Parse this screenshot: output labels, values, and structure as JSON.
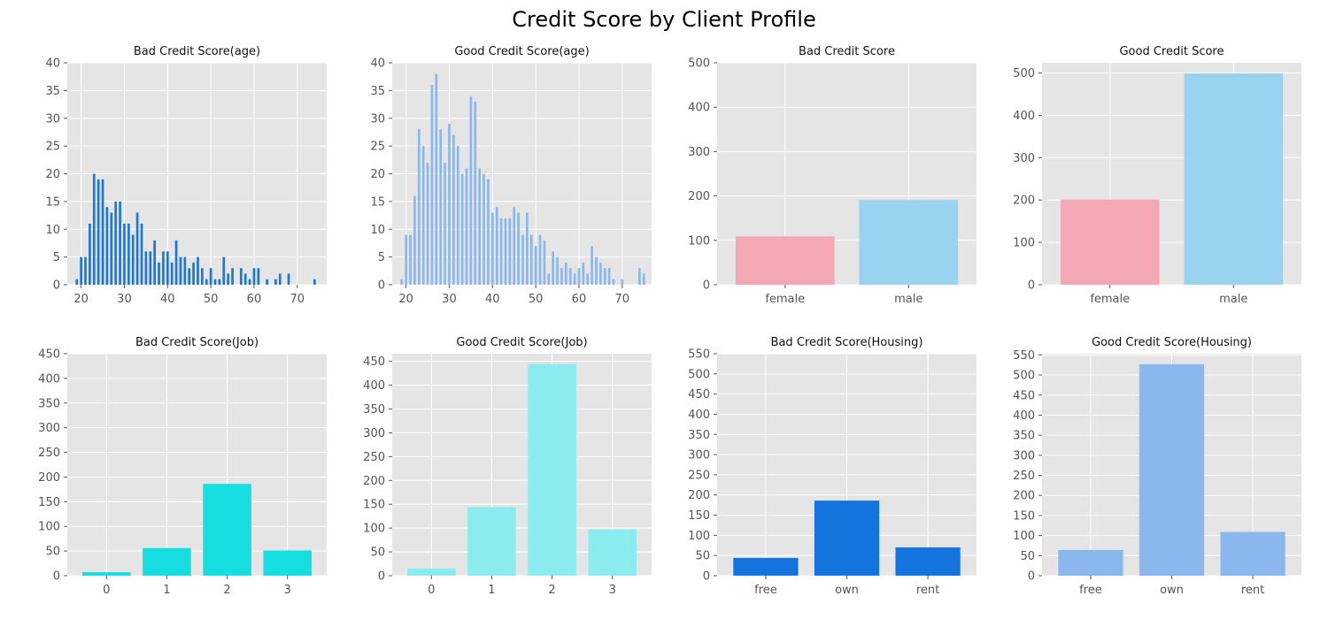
{
  "figure": {
    "title": "Credit Score by Client Profile"
  },
  "chart_data": [
    {
      "type": "bar",
      "title": "Bad Credit Score(age)",
      "xlabel": "",
      "ylabel": "",
      "color": "#1f77d4",
      "x": [
        19,
        20,
        21,
        22,
        23,
        24,
        25,
        26,
        27,
        28,
        29,
        30,
        31,
        32,
        33,
        34,
        35,
        36,
        37,
        38,
        39,
        40,
        41,
        42,
        43,
        44,
        45,
        46,
        47,
        48,
        49,
        50,
        51,
        52,
        53,
        54,
        55,
        57,
        58,
        59,
        60,
        61,
        63,
        65,
        66,
        68,
        74
      ],
      "values": [
        1,
        5,
        5,
        11,
        20,
        19,
        19,
        14,
        13,
        15,
        15,
        11,
        11,
        9,
        13,
        11,
        6,
        6,
        8,
        4,
        6,
        6,
        4,
        8,
        5,
        5,
        3,
        4,
        5,
        3,
        1,
        3,
        1,
        1,
        5,
        2,
        3,
        3,
        2,
        1,
        3,
        3,
        1,
        1,
        2,
        2,
        1
      ],
      "xlim": [
        16.8,
        76.8
      ],
      "ylim": [
        0,
        40
      ],
      "xticks": [
        20,
        30,
        40,
        50,
        60,
        70
      ],
      "yticks": [
        0,
        5,
        10,
        15,
        20,
        25,
        30,
        35,
        40
      ]
    },
    {
      "type": "bar",
      "title": "Good Credit Score(age)",
      "xlabel": "",
      "ylabel": "",
      "color": "#8ab8ee",
      "x": [
        19,
        20,
        21,
        22,
        23,
        24,
        25,
        26,
        27,
        28,
        29,
        30,
        31,
        32,
        33,
        34,
        35,
        36,
        37,
        38,
        39,
        40,
        41,
        42,
        43,
        44,
        45,
        46,
        47,
        48,
        49,
        50,
        51,
        52,
        53,
        54,
        55,
        56,
        57,
        58,
        59,
        60,
        61,
        62,
        63,
        64,
        65,
        66,
        67,
        68,
        70,
        74,
        75
      ],
      "values": [
        1,
        9,
        9,
        16,
        28,
        25,
        22,
        36,
        38,
        28,
        22,
        29,
        27,
        25,
        20,
        21,
        34,
        33,
        21,
        20,
        19,
        13,
        14,
        12,
        12,
        12,
        14,
        13,
        9,
        13,
        9,
        7,
        9,
        8,
        2,
        6,
        5,
        3,
        4,
        3,
        2,
        3,
        4,
        2,
        7,
        5,
        4,
        3,
        3,
        1,
        1,
        3,
        2
      ],
      "xlim": [
        16.8,
        76.8
      ],
      "ylim": [
        0,
        40
      ],
      "xticks": [
        20,
        30,
        40,
        50,
        60,
        70
      ],
      "yticks": [
        0,
        5,
        10,
        15,
        20,
        25,
        30,
        35,
        40
      ]
    },
    {
      "type": "bar",
      "title": "Bad Credit Score",
      "xlabel": "",
      "ylabel": "",
      "categories": [
        "female",
        "male"
      ],
      "values": [
        109,
        191
      ],
      "colors": [
        "#f4a7b4",
        "#9ad3f0"
      ],
      "ylim": [
        0,
        500
      ],
      "yticks": [
        0,
        100,
        200,
        300,
        400,
        500
      ]
    },
    {
      "type": "bar",
      "title": "Good Credit Score",
      "xlabel": "",
      "ylabel": "",
      "categories": [
        "female",
        "male"
      ],
      "values": [
        201,
        499
      ],
      "colors": [
        "#f4a7b4",
        "#9ad3f0"
      ],
      "ylim": [
        0,
        524
      ],
      "yticks": [
        0,
        100,
        200,
        300,
        400,
        500
      ]
    },
    {
      "type": "bar",
      "title": "Bad Credit Score(Job)",
      "xlabel": "",
      "ylabel": "",
      "categories": [
        "0",
        "1",
        "2",
        "3"
      ],
      "values": [
        7,
        56,
        186,
        51
      ],
      "colors": [
        "#15dde0",
        "#15dde0",
        "#15dde0",
        "#15dde0"
      ],
      "ylim": [
        0,
        450
      ],
      "yticks": [
        0,
        50,
        100,
        150,
        200,
        250,
        300,
        350,
        400,
        450
      ]
    },
    {
      "type": "bar",
      "title": "Good Credit Score(Job)",
      "xlabel": "",
      "ylabel": "",
      "categories": [
        "0",
        "1",
        "2",
        "3"
      ],
      "values": [
        15,
        144,
        444,
        97
      ],
      "colors": [
        "#8aecef",
        "#8aecef",
        "#8aecef",
        "#8aecef"
      ],
      "ylim": [
        0,
        466
      ],
      "yticks": [
        0,
        50,
        100,
        150,
        200,
        250,
        300,
        350,
        400,
        450
      ]
    },
    {
      "type": "bar",
      "title": "Bad Credit Score(Housing)",
      "xlabel": "",
      "ylabel": "",
      "categories": [
        "free",
        "own",
        "rent"
      ],
      "values": [
        44,
        186,
        70
      ],
      "colors": [
        "#1474de",
        "#1474de",
        "#1474de"
      ],
      "ylim": [
        0,
        550
      ],
      "yticks": [
        0,
        50,
        100,
        150,
        200,
        250,
        300,
        350,
        400,
        450,
        500,
        550
      ]
    },
    {
      "type": "bar",
      "title": "Good Credit Score(Housing)",
      "xlabel": "",
      "ylabel": "",
      "categories": [
        "free",
        "own",
        "rent"
      ],
      "values": [
        64,
        527,
        109
      ],
      "colors": [
        "#8ab8ee",
        "#8ab8ee",
        "#8ab8ee"
      ],
      "ylim": [
        0,
        553
      ],
      "yticks": [
        0,
        50,
        100,
        150,
        200,
        250,
        300,
        350,
        400,
        450,
        500,
        550
      ]
    }
  ]
}
